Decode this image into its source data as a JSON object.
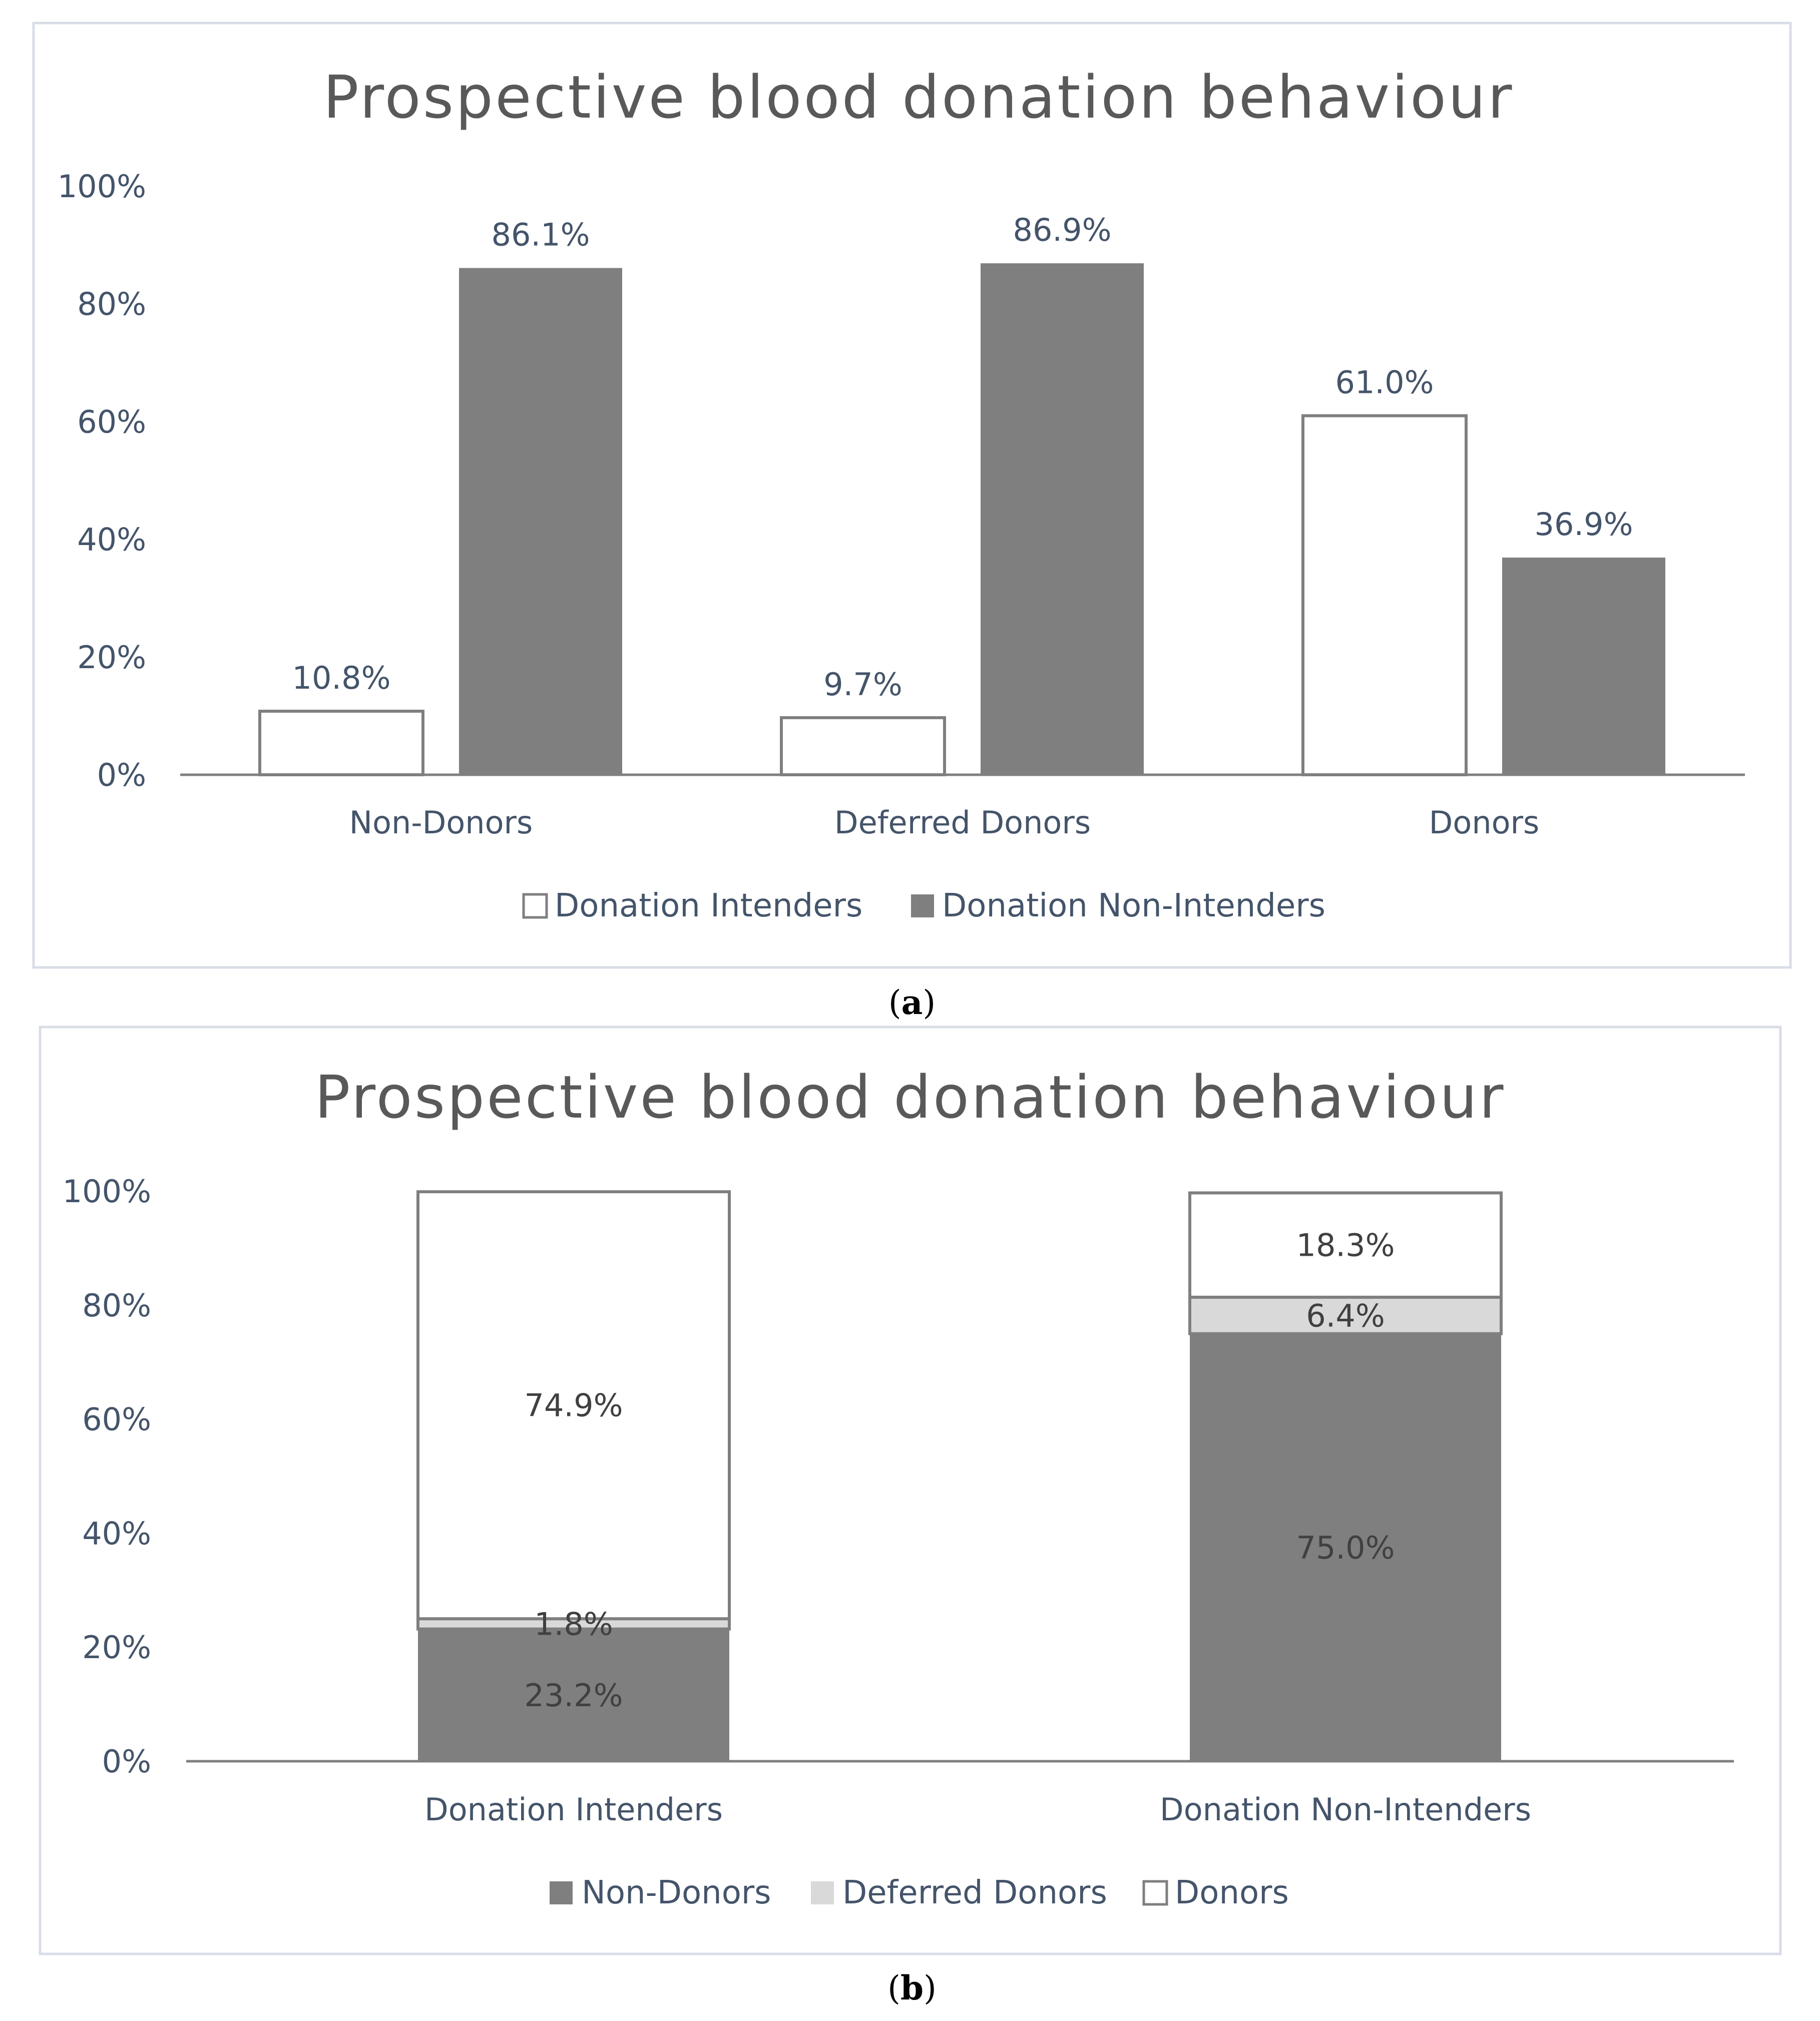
{
  "colors": {
    "frame": "#d9dde6",
    "axis": "#7f7f7f",
    "non_donors": "#7f7f7f",
    "deferred_donors": "#d9d9d9",
    "donors": "#ffffff",
    "bar_outline": "#7f7f7f",
    "intenders": "#ffffff",
    "non_intenders": "#7f7f7f"
  },
  "panel_a": {
    "caption_letter": "a",
    "chart_data": {
      "type": "bar",
      "title": "Prospective blood donation behaviour",
      "categories": [
        "Non-Donors",
        "Deferred Donors",
        "Donors"
      ],
      "series": [
        {
          "name": "Donation Intenders",
          "values": [
            10.8,
            9.7,
            61.0
          ],
          "labels": [
            "10.8%",
            "9.7%",
            "61.0%"
          ]
        },
        {
          "name": "Donation Non-Intenders",
          "values": [
            86.1,
            86.9,
            36.9
          ],
          "labels": [
            "86.1%",
            "86.9%",
            "36.9%"
          ]
        }
      ],
      "yticks": [
        "0%",
        "20%",
        "40%",
        "60%",
        "80%",
        "100%"
      ],
      "ylim": [
        0,
        100
      ],
      "xlabel": "",
      "ylabel": "",
      "legend_position": "bottom"
    }
  },
  "panel_b": {
    "caption_letter": "b",
    "chart_data": {
      "type": "stacked-bar",
      "title": "Prospective blood donation behaviour",
      "categories": [
        "Donation Intenders",
        "Donation Non-Intenders"
      ],
      "series": [
        {
          "name": "Non-Donors",
          "values": [
            23.2,
            75.0
          ],
          "labels": [
            "23.2%",
            "75.0%"
          ]
        },
        {
          "name": "Deferred Donors",
          "values": [
            1.8,
            6.4
          ],
          "labels": [
            "1.8%",
            "6.4%"
          ]
        },
        {
          "name": "Donors",
          "values": [
            74.9,
            18.3
          ],
          "labels": [
            "74.9%",
            "18.3%"
          ]
        }
      ],
      "yticks": [
        "0%",
        "20%",
        "40%",
        "60%",
        "80%",
        "100%"
      ],
      "ylim": [
        0,
        100
      ],
      "xlabel": "",
      "ylabel": "",
      "legend_position": "bottom"
    }
  }
}
